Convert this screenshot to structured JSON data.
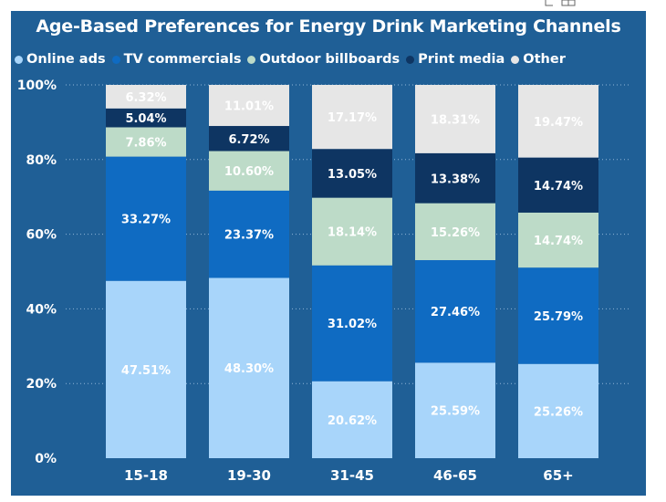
{
  "chart_data": {
    "type": "bar",
    "stacked": true,
    "title": "Age-Based Preferences for Energy Drink Marketing Channels",
    "categories": [
      "15-18",
      "19-30",
      "31-45",
      "46-65",
      "65+"
    ],
    "series": [
      {
        "name": "Online ads",
        "color": "#A8D5FA",
        "values": [
          47.51,
          48.3,
          20.62,
          25.59,
          25.26
        ]
      },
      {
        "name": "TV commercials",
        "color": "#0F6BC2",
        "values": [
          33.27,
          23.37,
          31.02,
          27.46,
          25.79
        ]
      },
      {
        "name": "Outdoor billboards",
        "color": "#BDDBC8",
        "values": [
          7.86,
          10.6,
          18.14,
          15.26,
          14.74
        ]
      },
      {
        "name": "Print media",
        "color": "#0E3562",
        "values": [
          5.04,
          6.72,
          13.05,
          13.38,
          14.74
        ]
      },
      {
        "name": "Other",
        "color": "#E6E6E6",
        "values": [
          6.32,
          11.01,
          17.17,
          18.31,
          19.47
        ]
      }
    ],
    "labels": [
      [
        "47.51%",
        "48.30%",
        "20.62%",
        "25.59%",
        "25.26%"
      ],
      [
        "33.27%",
        "23.37%",
        "31.02%",
        "27.46%",
        "25.79%"
      ],
      [
        "7.86%",
        "10.60%",
        "18.14%",
        "15.26%",
        "14.74%"
      ],
      [
        "5.04%",
        "6.72%",
        "13.05%",
        "13.38%",
        "14.74%"
      ],
      [
        "6.32%",
        "11.01%",
        "17.17%",
        "18.31%",
        "19.47%"
      ]
    ],
    "y_ticks": [
      {
        "value": 0,
        "label": "0%"
      },
      {
        "value": 20,
        "label": "20%"
      },
      {
        "value": 40,
        "label": "40%"
      },
      {
        "value": 60,
        "label": "60%"
      },
      {
        "value": 80,
        "label": "80%"
      },
      {
        "value": 100,
        "label": "100%"
      }
    ],
    "ylim": [
      0,
      100
    ],
    "grid": true,
    "legend_position": "top-left",
    "colors": {
      "background": "#1F5F96",
      "label_light": "#ffffff",
      "label_dark": "#ffffff"
    }
  }
}
